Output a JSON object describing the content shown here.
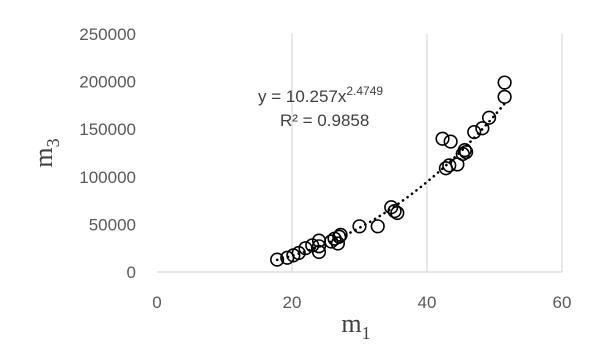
{
  "chart_data": {
    "type": "scatter",
    "xlabel": "m",
    "xlabel_sub": "1",
    "ylabel": "m",
    "ylabel_sub": "3",
    "xlim": [
      0,
      60
    ],
    "ylim": [
      0,
      250000
    ],
    "xticks": [
      0,
      20,
      40,
      60
    ],
    "yticks": [
      0,
      50000,
      100000,
      150000,
      200000,
      250000
    ],
    "xtick_labels": [
      "0",
      "20",
      "40",
      "60"
    ],
    "ytick_labels": [
      "0",
      "50000",
      "100000",
      "150000",
      "200000",
      "250000"
    ],
    "grid": {
      "vertical": true,
      "horizontal": false
    },
    "legend": "none",
    "marker": "open-circle",
    "points": [
      {
        "x": 17.8,
        "y": 13000
      },
      {
        "x": 19.3,
        "y": 15000
      },
      {
        "x": 20.2,
        "y": 17500
      },
      {
        "x": 21.0,
        "y": 20000
      },
      {
        "x": 22.0,
        "y": 25000
      },
      {
        "x": 23.0,
        "y": 28000
      },
      {
        "x": 24.0,
        "y": 21000
      },
      {
        "x": 24.0,
        "y": 27000
      },
      {
        "x": 24.0,
        "y": 33000
      },
      {
        "x": 25.8,
        "y": 32000
      },
      {
        "x": 26.3,
        "y": 35000
      },
      {
        "x": 26.8,
        "y": 30000
      },
      {
        "x": 27.0,
        "y": 37000
      },
      {
        "x": 27.2,
        "y": 39000
      },
      {
        "x": 30.0,
        "y": 48000
      },
      {
        "x": 32.7,
        "y": 48000
      },
      {
        "x": 34.7,
        "y": 68000
      },
      {
        "x": 35.2,
        "y": 64000
      },
      {
        "x": 35.6,
        "y": 62000
      },
      {
        "x": 42.3,
        "y": 140000
      },
      {
        "x": 42.8,
        "y": 109000
      },
      {
        "x": 43.3,
        "y": 112000
      },
      {
        "x": 43.5,
        "y": 137000
      },
      {
        "x": 44.5,
        "y": 113000
      },
      {
        "x": 45.3,
        "y": 124000
      },
      {
        "x": 45.6,
        "y": 128000
      },
      {
        "x": 45.8,
        "y": 126000
      },
      {
        "x": 47.0,
        "y": 147000
      },
      {
        "x": 48.2,
        "y": 151000
      },
      {
        "x": 49.2,
        "y": 162000
      },
      {
        "x": 51.5,
        "y": 184000
      },
      {
        "x": 51.5,
        "y": 199000
      }
    ],
    "trendline": {
      "type": "power",
      "a": 10.257,
      "b": 2.4749,
      "x_range": [
        17.8,
        51.5
      ],
      "style": "dotted"
    },
    "annotations": {
      "equation_base": "y = 10.257x",
      "equation_exp": "2.4749",
      "r_squared": "R² = 0.9858"
    }
  }
}
